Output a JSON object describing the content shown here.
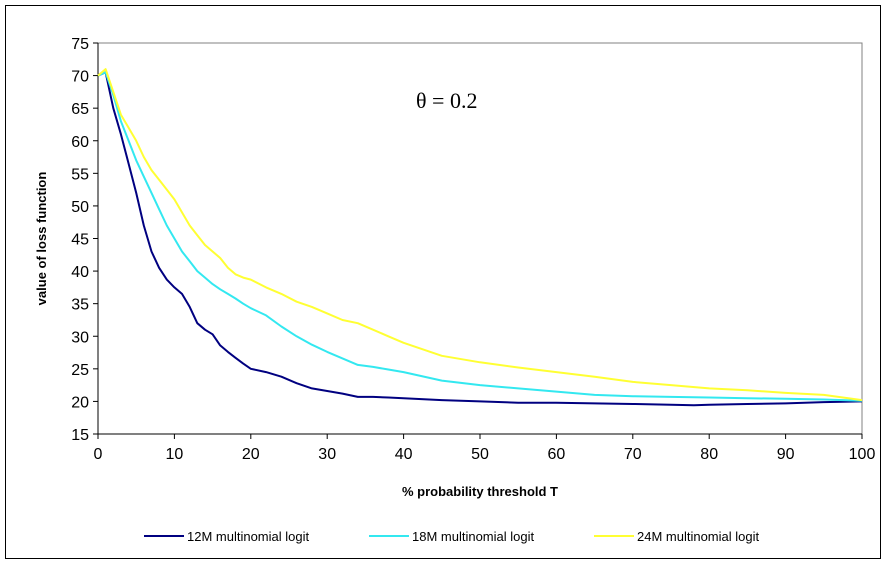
{
  "chart_data": {
    "type": "line",
    "title": "",
    "annotation": "θ = 0.2",
    "xlabel": "% probability threshold T",
    "ylabel": "value of loss function",
    "xlim": [
      0,
      100
    ],
    "ylim": [
      15,
      75
    ],
    "xticks": [
      0,
      10,
      20,
      30,
      40,
      50,
      60,
      70,
      80,
      90,
      100
    ],
    "yticks": [
      15,
      20,
      25,
      30,
      35,
      40,
      45,
      50,
      55,
      60,
      65,
      70,
      75
    ],
    "grid": false,
    "legend_position": "bottom",
    "series": [
      {
        "name": "12M multinomial logit",
        "color": "#000080",
        "x": [
          0,
          1,
          2,
          3,
          4,
          5,
          6,
          7,
          8,
          9,
          10,
          11,
          12,
          13,
          14,
          15,
          16,
          17,
          18,
          19,
          20,
          22,
          24,
          26,
          28,
          30,
          32,
          34,
          36,
          38,
          40,
          45,
          50,
          55,
          60,
          65,
          70,
          75,
          78,
          80,
          85,
          90,
          95,
          100
        ],
        "y": [
          70,
          70.5,
          65,
          61,
          56.5,
          52,
          47,
          43,
          40.5,
          38.7,
          37.5,
          36.5,
          34.5,
          32,
          31,
          30.3,
          28.6,
          27.6,
          26.7,
          25.8,
          25,
          24.5,
          23.8,
          22.8,
          22,
          21.6,
          21.2,
          20.7,
          20.7,
          20.6,
          20.5,
          20.2,
          20,
          19.8,
          19.8,
          19.7,
          19.6,
          19.5,
          19.4,
          19.5,
          19.6,
          19.7,
          19.9,
          20
        ]
      },
      {
        "name": "18M multinomial logit",
        "color": "#33e8f0",
        "x": [
          0,
          1,
          2,
          3,
          4,
          5,
          6,
          7,
          8,
          9,
          10,
          11,
          12,
          13,
          14,
          15,
          16,
          17,
          18,
          19,
          20,
          22,
          24,
          26,
          28,
          30,
          32,
          34,
          36,
          38,
          40,
          45,
          50,
          55,
          60,
          65,
          70,
          75,
          80,
          85,
          90,
          95,
          100
        ],
        "y": [
          70,
          70.5,
          67,
          63,
          60,
          57,
          54.5,
          52,
          49.5,
          47,
          45,
          43,
          41.5,
          40,
          39,
          38,
          37.2,
          36.5,
          35.8,
          35,
          34.3,
          33.2,
          31.5,
          30,
          28.7,
          27.6,
          26.6,
          25.6,
          25.3,
          24.9,
          24.5,
          23.2,
          22.5,
          22,
          21.5,
          21,
          20.8,
          20.7,
          20.6,
          20.5,
          20.4,
          20.3,
          20.1
        ]
      },
      {
        "name": "24M multinomial logit",
        "color": "#ffff33",
        "x": [
          0,
          1,
          2,
          3,
          4,
          5,
          6,
          7,
          8,
          9,
          10,
          11,
          12,
          13,
          14,
          15,
          16,
          17,
          18,
          19,
          20,
          22,
          24,
          26,
          28,
          30,
          32,
          34,
          36,
          38,
          40,
          45,
          50,
          55,
          60,
          65,
          70,
          75,
          80,
          85,
          90,
          95,
          100
        ],
        "y": [
          70,
          71,
          67.5,
          64,
          62,
          60,
          57.5,
          55.5,
          54,
          52.5,
          51,
          49,
          47,
          45.5,
          44,
          43,
          42,
          40.5,
          39.5,
          39,
          38.7,
          37.5,
          36.5,
          35.3,
          34.5,
          33.5,
          32.5,
          32,
          31,
          30,
          29,
          27,
          26,
          25.2,
          24.5,
          23.8,
          23,
          22.5,
          22,
          21.7,
          21.3,
          21,
          20.2
        ]
      }
    ]
  }
}
